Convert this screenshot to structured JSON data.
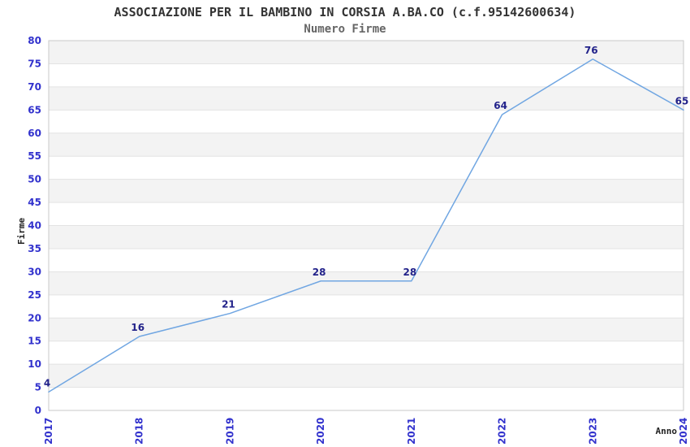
{
  "chart_data": {
    "type": "line",
    "title": "ASSOCIAZIONE PER IL BAMBINO IN CORSIA A.BA.CO (c.f.95142600634)",
    "subtitle": "Numero Firme",
    "xlabel": "Anno",
    "ylabel": "Firme",
    "x": [
      "2017",
      "2018",
      "2019",
      "2020",
      "2021",
      "2022",
      "2023",
      "2024"
    ],
    "series": [
      {
        "name": "Numero Firme",
        "values": [
          4,
          16,
          21,
          28,
          28,
          64,
          76,
          65
        ]
      }
    ],
    "point_labels": [
      "4",
      "16",
      "21",
      "28",
      "28",
      "64",
      "76",
      "65"
    ],
    "ylim": [
      0,
      80
    ],
    "ytick_step": 5,
    "yticks": [
      0,
      5,
      10,
      15,
      20,
      25,
      30,
      35,
      40,
      45,
      50,
      55,
      60,
      65,
      70,
      75,
      80
    ],
    "grid": "horizontal",
    "background_bands": true,
    "legend": "none",
    "colors": {
      "line": "#70a6e2",
      "tick_label": "#3232cd",
      "point_label": "#22228a",
      "band": "#f3f3f3",
      "gridline": "#e3e3e3",
      "plot_border": "#c9c9c9",
      "title": "#333333",
      "subtitle": "#666666",
      "axis_title": "#222222",
      "background": "#ffffff"
    }
  }
}
